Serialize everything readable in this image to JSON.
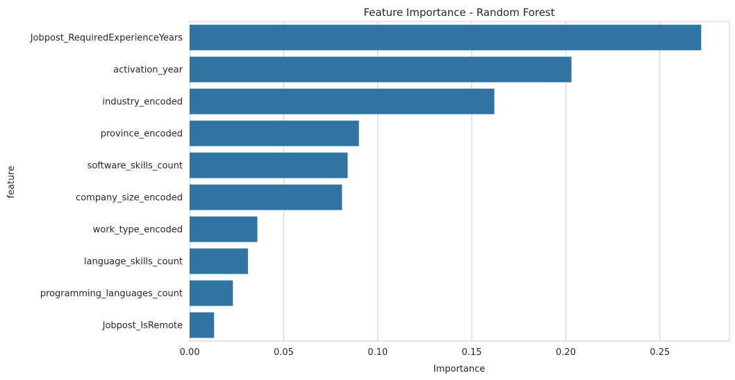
{
  "chart_data": {
    "type": "bar",
    "orientation": "horizontal",
    "title": "Feature Importance - Random Forest",
    "xlabel": "Importance",
    "ylabel": "feature",
    "categories": [
      "Jobpost_RequiredExperienceYears",
      "activation_year",
      "industry_encoded",
      "province_encoded",
      "software_skills_count",
      "company_size_encoded",
      "work_type_encoded",
      "language_skills_count",
      "programming_languages_count",
      "Jobpost_IsRemote"
    ],
    "values": [
      0.272,
      0.203,
      0.162,
      0.09,
      0.084,
      0.081,
      0.036,
      0.031,
      0.023,
      0.013
    ],
    "xlim": [
      0,
      0.287
    ],
    "xticks": [
      0.0,
      0.05,
      0.1,
      0.15,
      0.2,
      0.25
    ],
    "xtick_labels": [
      "0.00",
      "0.05",
      "0.10",
      "0.15",
      "0.20",
      "0.25"
    ],
    "grid": true,
    "bar_color": "#3274a1",
    "grid_color": "#cccccc"
  }
}
